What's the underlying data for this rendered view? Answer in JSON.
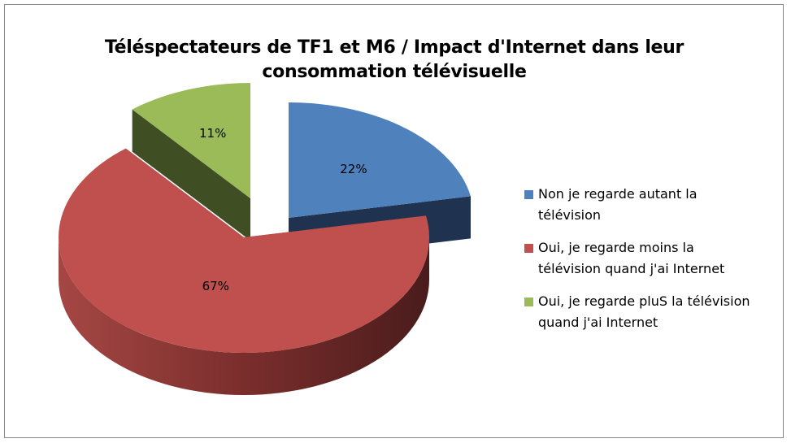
{
  "chart_data": {
    "type": "pie",
    "style": "3d-exploded",
    "title": "Téléspectateurs de TF1 et M6 / Impact d'Internet dans leur consommation télévisuelle",
    "title_lines": [
      "Téléspectateurs de TF1 et M6 / Impact d'Internet dans leur",
      "consommation télévisuelle"
    ],
    "legend_position": "right",
    "slices": [
      {
        "label": "Non je regarde autant la télévision",
        "legend_lines": [
          "Non je regarde autant la",
          "télévision"
        ],
        "value": 22,
        "data_label": "22%",
        "color": "#4f81bd",
        "side_color": "#1f3350",
        "exploded": true
      },
      {
        "label": "Oui, je regarde moins la télévision quand j'ai Internet",
        "legend_lines": [
          "Oui, je regarde moins la",
          "télévision quand j'ai Internet"
        ],
        "value": 67,
        "data_label": "67%",
        "color": "#c0504d",
        "side_color": "#8c3a38",
        "exploded": false
      },
      {
        "label": "Oui, je regarde pluS la télévision quand j'ai Internet",
        "legend_lines": [
          "Oui, je regarde pluS la télévision",
          "quand j'ai Internet"
        ],
        "value": 11,
        "data_label": "11%",
        "color": "#9bbb59",
        "side_color": "#3f4f23",
        "exploded": true
      }
    ]
  }
}
